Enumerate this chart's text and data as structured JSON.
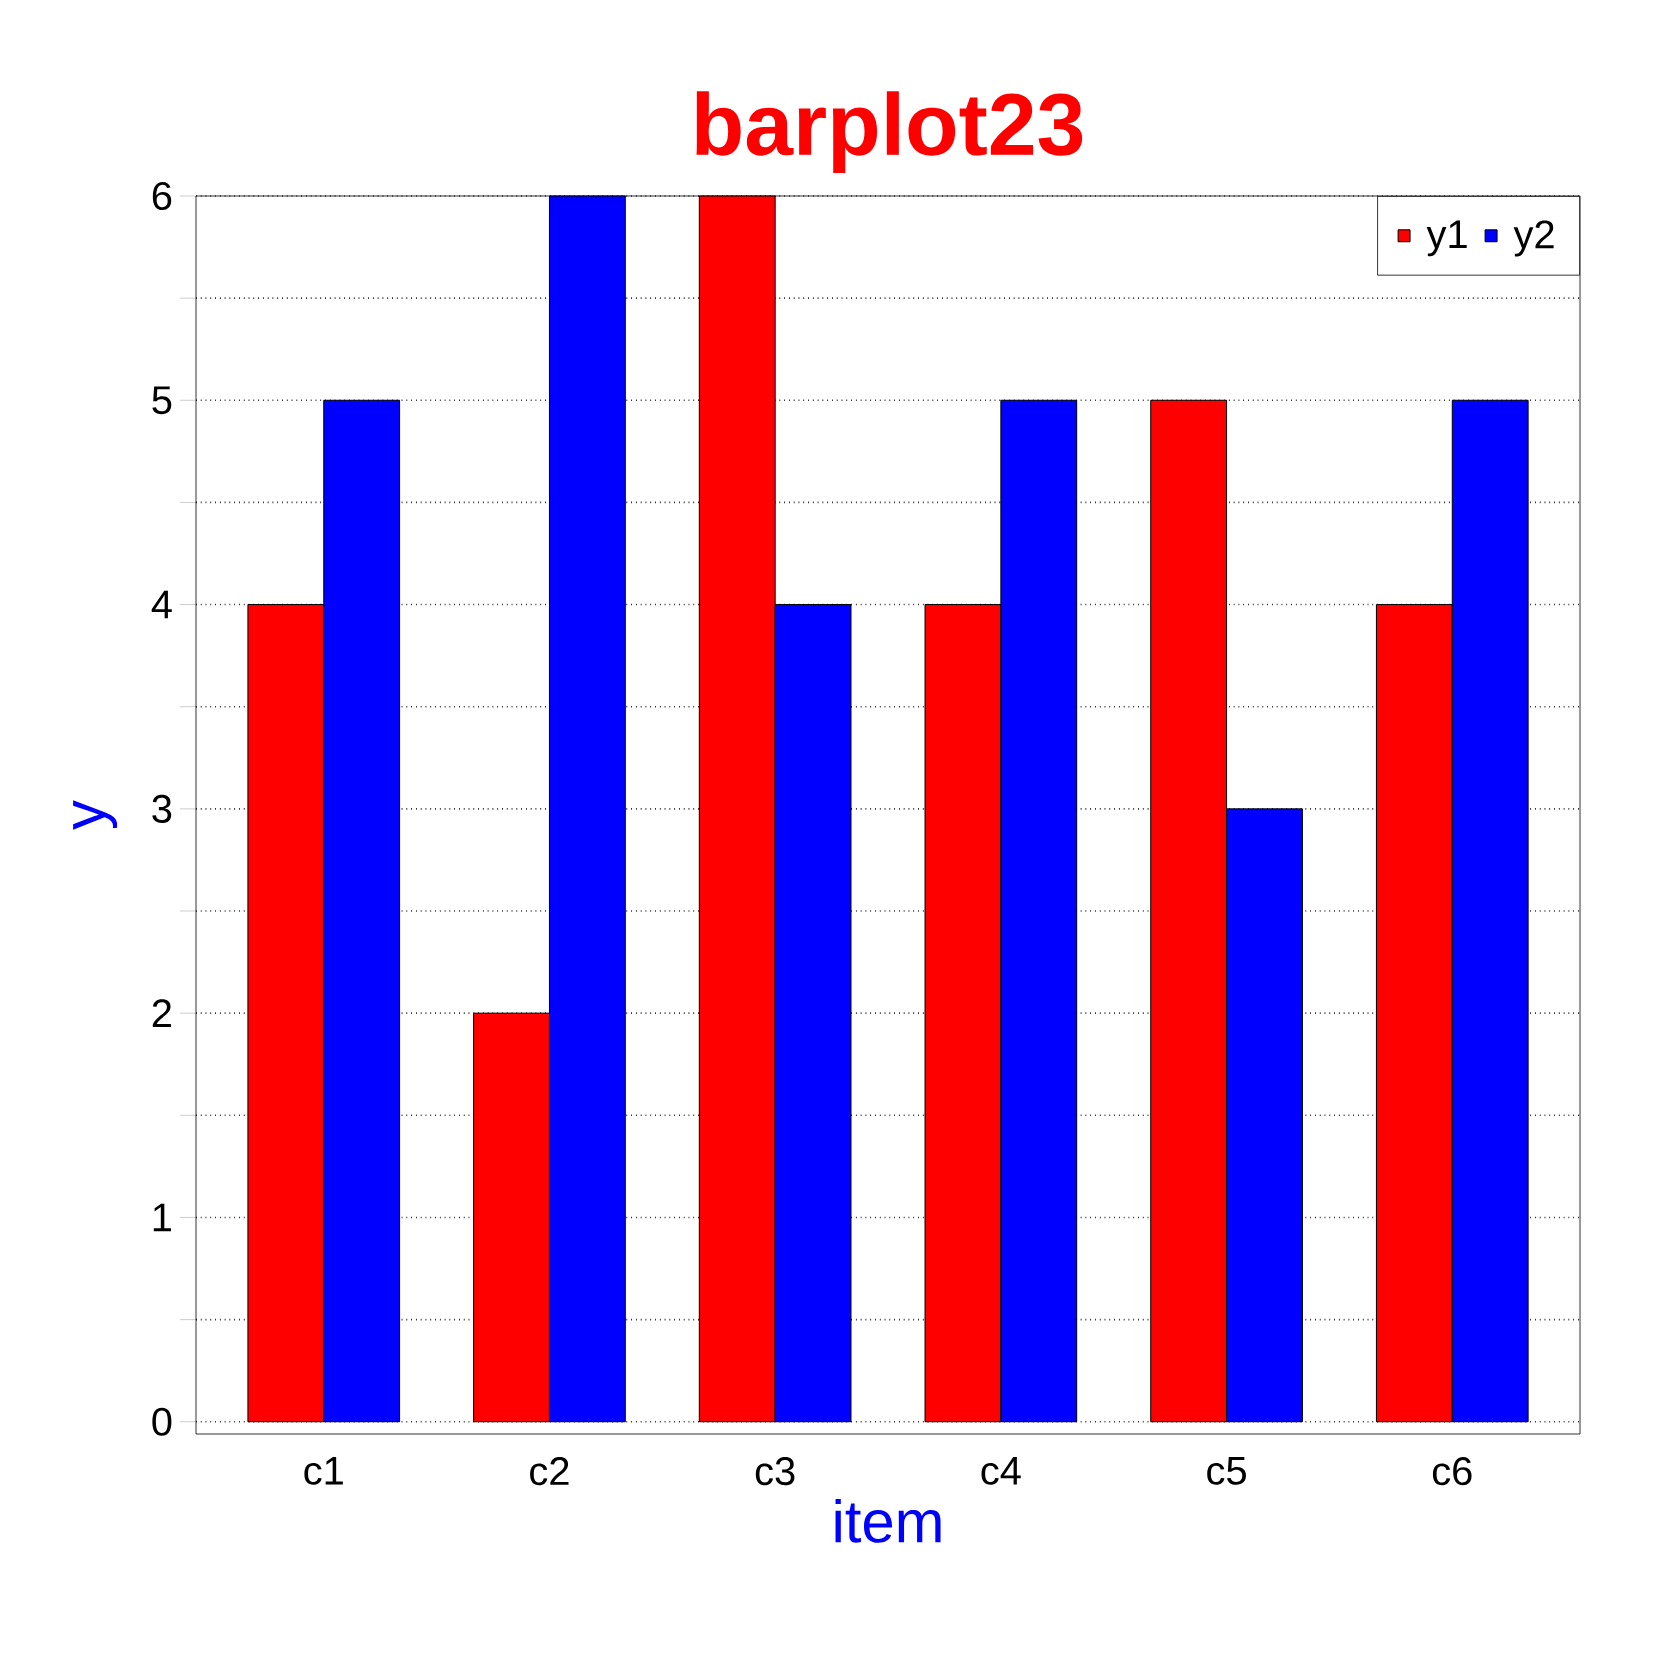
{
  "chart_data": {
    "type": "bar",
    "title": "barplot23",
    "xlabel": "item",
    "ylabel": "y",
    "categories": [
      "c1",
      "c2",
      "c3",
      "c4",
      "c5",
      "c6"
    ],
    "series": [
      {
        "name": "y1",
        "color": "#ff0000",
        "values": [
          4,
          2,
          6,
          4,
          5,
          4
        ]
      },
      {
        "name": "y2",
        "color": "#0000ff",
        "values": [
          5,
          6,
          4,
          5,
          3,
          5
        ]
      }
    ],
    "ylim": [
      -0.06,
      6
    ],
    "yticks": [
      0,
      {
        "value": 0.5,
        "label": null
      },
      1,
      {
        "value": 1.5,
        "label": null
      },
      2,
      {
        "value": 2.5,
        "label": null
      },
      3,
      {
        "value": 3.5,
        "label": null
      },
      4,
      {
        "value": 4.5,
        "label": null
      },
      5,
      {
        "value": 5.5,
        "label": null
      },
      6
    ],
    "grid": "y",
    "legend": "top right"
  }
}
